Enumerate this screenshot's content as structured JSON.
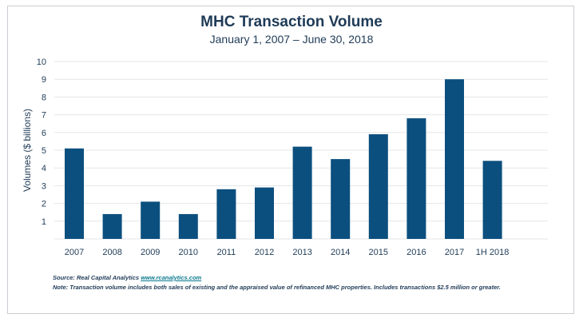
{
  "chart_data": {
    "type": "bar",
    "title": "MHC Transaction Volume",
    "subtitle": "January 1, 2007 – June 30, 2018",
    "ylabel": "Volumes ($ billions)",
    "xlabel": "",
    "categories": [
      "2007",
      "2008",
      "2009",
      "2010",
      "2011",
      "2012",
      "2013",
      "2014",
      "2015",
      "2016",
      "2017",
      "1H 2018"
    ],
    "values": [
      5.1,
      1.4,
      2.1,
      1.4,
      2.8,
      2.9,
      5.2,
      4.5,
      5.9,
      6.8,
      9.0,
      4.4
    ],
    "ylim": [
      0,
      10
    ],
    "yticks": [
      1,
      2,
      3,
      4,
      5,
      6,
      7,
      8,
      9,
      10
    ],
    "grid": true,
    "bar_color": "#0b4f7e",
    "grid_color": "#e3e5e8",
    "text_color": "#1f3b57"
  },
  "footer": {
    "source_prefix": "Source: Real Capital Analytics ",
    "source_link": "www.rcanalytics.com",
    "note": "Note: Transaction volume includes both sales of existing and the appraised value of refinanced MHC properties. Includes transactions $2.5 million or greater."
  }
}
